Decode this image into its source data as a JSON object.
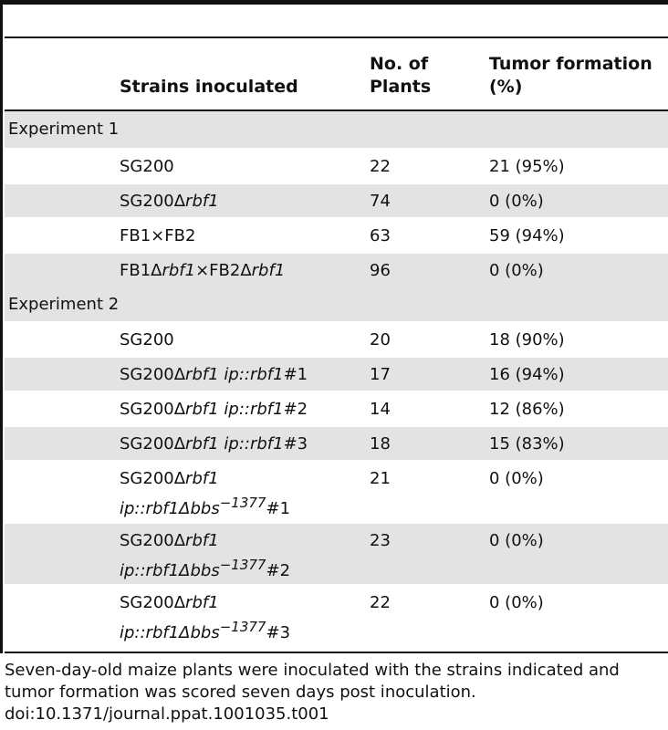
{
  "table": {
    "headers": {
      "strain": "Strains inoculated",
      "plants": "No. of Plants",
      "tumor": "Tumor formation (%)"
    },
    "sections": [
      {
        "label": "Experiment 1",
        "rows": [
          {
            "strain_html": "SG200",
            "plants": "22",
            "tumor": "21 (95%)"
          },
          {
            "strain_html": "SG200&Delta;<i>rbf1</i>",
            "plants": "74",
            "tumor": "0 (0%)"
          },
          {
            "strain_html": "FB1&times;FB2",
            "plants": "63",
            "tumor": "59 (94%)"
          },
          {
            "strain_html": "FB1&Delta;<i>rbf1</i>&times;FB2&Delta;<i>rbf1</i>",
            "plants": "96",
            "tumor": "0 (0%)"
          }
        ]
      },
      {
        "label": "Experiment 2",
        "rows": [
          {
            "strain_html": "SG200",
            "plants": "20",
            "tumor": "18 (90%)"
          },
          {
            "strain_html": "SG200&Delta;<i>rbf1</i> <i>ip::rbf1</i>#1",
            "plants": "17",
            "tumor": "16 (94%)"
          },
          {
            "strain_html": "SG200&Delta;<i>rbf1</i> <i>ip::rbf1</i>#2",
            "plants": "14",
            "tumor": "12 (86%)"
          },
          {
            "strain_html": "SG200&Delta;<i>rbf1</i> <i>ip::rbf1</i>#3",
            "plants": "18",
            "tumor": "15 (83%)"
          },
          {
            "strain_html": "SG200&Delta;<i>rbf1</i><br><i>ip::rbf1&Delta;bbs</i><sup>&minus;<i>1377</i></sup>#1",
            "plants": "21",
            "tumor": "0 (0%)"
          },
          {
            "strain_html": "SG200&Delta;<i>rbf1</i><br><i>ip::rbf1&Delta;bbs</i><sup>&minus;<i>1377</i></sup>#2",
            "plants": "23",
            "tumor": "0 (0%)"
          },
          {
            "strain_html": "SG200&Delta;<i>rbf1</i><br><i>ip::rbf1&Delta;bbs</i><sup>&minus;<i>1377</i></sup>#3",
            "plants": "22",
            "tumor": "0 (0%)"
          }
        ]
      }
    ]
  },
  "footnote": {
    "text": "Seven-day-old maize plants were inoculated with the strains indicated and tumor formation was scored seven days post inoculation.",
    "doi": "doi:10.1371/journal.ppat.1001035.t001"
  }
}
